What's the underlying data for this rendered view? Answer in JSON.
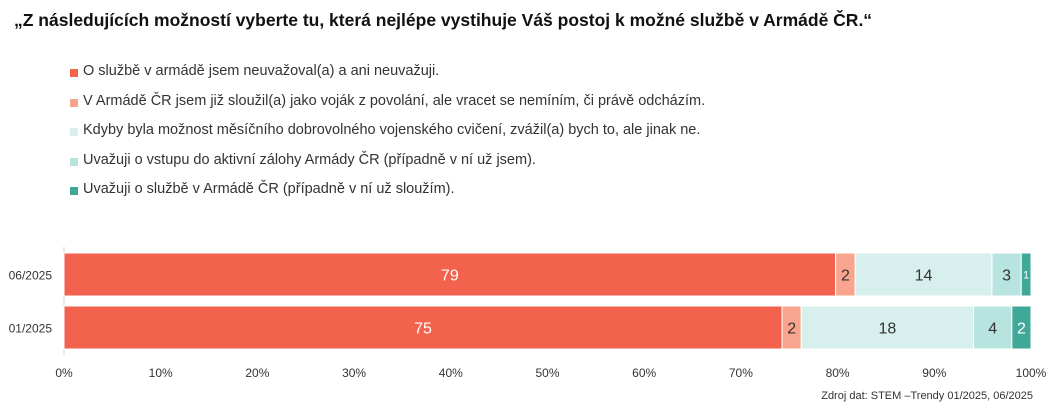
{
  "chart_data": {
    "type": "bar",
    "orientation": "horizontal",
    "stacked": true,
    "title": "„Z následujících možností vyberte tu, která nejlépe vystihuje Váš postoj k možné službě v Armádě ČR.“",
    "categories": [
      "06/2025",
      "01/2025"
    ],
    "series": [
      {
        "name": "O službě v armádě jsem neuvažoval(a) a ani neuvažuji.",
        "color": "#F2624C",
        "label_color": "#ffffff",
        "values": [
          79,
          75
        ]
      },
      {
        "name": "V Armádě ČR jsem již sloužil(a) jako voják z povolání, ale vracet se nemíním, či právě odcházím.",
        "color": "#F9A48F",
        "label_color": "#333333",
        "values": [
          2,
          2
        ]
      },
      {
        "name": "Kdyby byla možnost měsíčního dobrovolného vojenského cvičení, zvážil(a) bych to, ale jinak ne.",
        "color": "#D7F0EE",
        "label_color": "#333333",
        "values": [
          14,
          18
        ]
      },
      {
        "name": "Uvažuji o vstupu do aktivní zálohy Armády ČR (případně v ní už jsem).",
        "color": "#B7E4DF",
        "label_color": "#333333",
        "values": [
          3,
          4
        ]
      },
      {
        "name": "Uvažuji o službě v Armádě ČR (případně v ní už sloužím).",
        "color": "#3FA898",
        "label_color": "#ffffff",
        "values": [
          1,
          2
        ]
      }
    ],
    "xlim": [
      0,
      100
    ],
    "xticks": [
      "0%",
      "10%",
      "20%",
      "30%",
      "40%",
      "50%",
      "60%",
      "70%",
      "80%",
      "90%",
      "100%"
    ],
    "grid": false,
    "legend_position": "top-left"
  },
  "source": "Zdroj dat: STEM –Trendy 01/2025, 06/2025"
}
